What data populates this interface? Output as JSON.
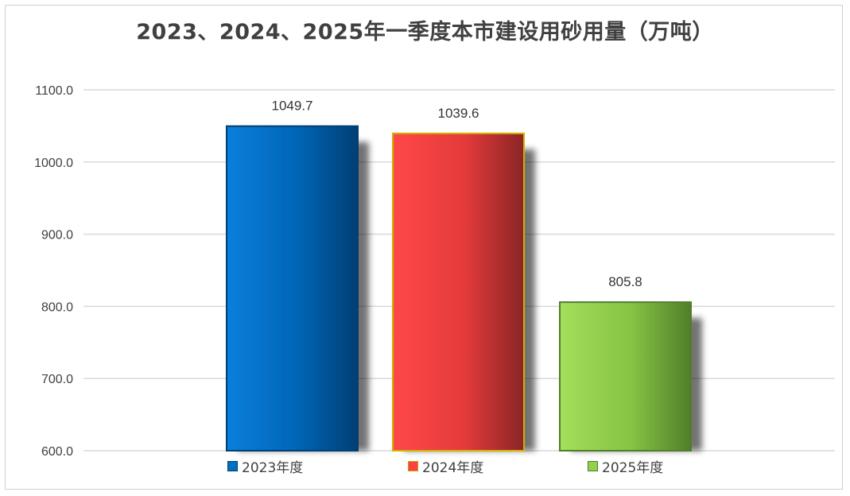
{
  "chart_data": {
    "type": "bar",
    "title": "2023、2024、2025年一季度本市建设用砂用量（万吨）",
    "categories": [
      "2023年度",
      "2024年度",
      "2025年度"
    ],
    "values": [
      1049.7,
      1039.6,
      805.8
    ],
    "data_labels": [
      "1049.7",
      "1039.6",
      "805.8"
    ],
    "ylim": [
      600,
      1100
    ],
    "yticks": [
      "600.0",
      "700.0",
      "800.0",
      "900.0",
      "1000.0",
      "1100.0"
    ],
    "ytick_values": [
      600,
      700,
      800,
      900,
      1000,
      1100
    ],
    "grid": true,
    "legend_position": "bottom",
    "series": [
      {
        "name": "2023年度",
        "color": "#0070c0",
        "value": 1049.7
      },
      {
        "name": "2024年度",
        "color": "#ff4040",
        "value": 1039.6
      },
      {
        "name": "2025年度",
        "color": "#92d050",
        "value": 805.8
      }
    ]
  }
}
